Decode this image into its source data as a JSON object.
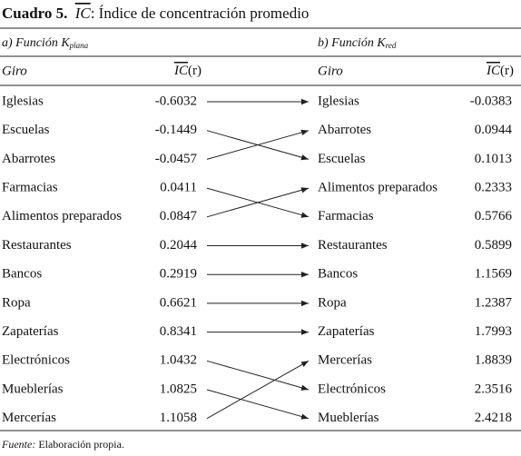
{
  "title": {
    "label": "Cuadro 5.",
    "symbol": "IC",
    "text": ": Índice de concentración promedio"
  },
  "left": {
    "heading": "a) Función K",
    "subscript": "plana",
    "col_giro": "Giro",
    "col_symbol": "IC",
    "col_arg": "(r)",
    "rows": [
      [
        "Iglesias",
        "-0.6032"
      ],
      [
        "Escuelas",
        "-0.1449"
      ],
      [
        "Abarrotes",
        "-0.0457"
      ],
      [
        "Farmacias",
        "0.0411"
      ],
      [
        "Alimentos preparados",
        "0.0847"
      ],
      [
        "Restaurantes",
        "0.2044"
      ],
      [
        "Bancos",
        "0.2919"
      ],
      [
        "Ropa",
        "0.6621"
      ],
      [
        "Zapaterías",
        "0.8341"
      ],
      [
        "Electrónicos",
        "1.0432"
      ],
      [
        "Mueblerías",
        "1.0825"
      ],
      [
        "Mercerías",
        "1.1058"
      ]
    ]
  },
  "right": {
    "heading": "b) Función K",
    "subscript": "red",
    "col_giro": "Giro",
    "col_symbol": "IC",
    "col_arg": "(r)",
    "rows": [
      [
        "Iglesias",
        "-0.0383"
      ],
      [
        "Abarrotes",
        "0.0944"
      ],
      [
        "Escuelas",
        "0.1013"
      ],
      [
        "Alimentos preparados",
        "0.2333"
      ],
      [
        "Farmacias",
        "0.5766"
      ],
      [
        "Restaurantes",
        "0.5899"
      ],
      [
        "Bancos",
        "1.1569"
      ],
      [
        "Ropa",
        "1.2387"
      ],
      [
        "Zapaterías",
        "1.7993"
      ],
      [
        "Mercerías",
        "1.8839"
      ],
      [
        "Electrónicos",
        "2.3516"
      ],
      [
        "Mueblerías",
        "2.4218"
      ]
    ]
  },
  "footer": {
    "label": "Fuente:",
    "text": "Elaboración propia."
  }
}
